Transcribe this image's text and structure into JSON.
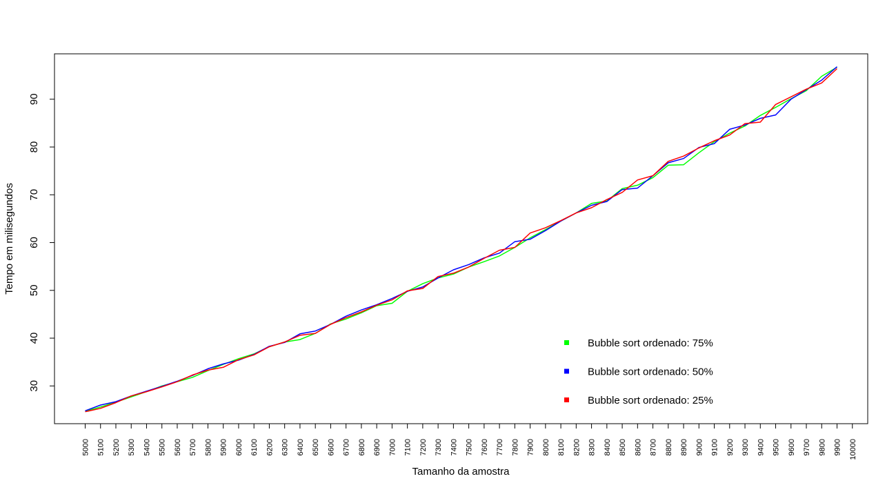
{
  "chart_data": {
    "type": "line",
    "title": "",
    "xlabel": "Tamanho da amostra",
    "ylabel": "Tempo em milisegundos",
    "x": [
      5000,
      5100,
      5200,
      5300,
      5400,
      5500,
      5600,
      5700,
      5800,
      5900,
      6000,
      6100,
      6200,
      6300,
      6400,
      6500,
      6600,
      6700,
      6800,
      6900,
      7000,
      7100,
      7200,
      7300,
      7400,
      7500,
      7600,
      7700,
      7800,
      7900,
      8000,
      8100,
      8200,
      8300,
      8400,
      8500,
      8600,
      8700,
      8800,
      8900,
      9000,
      9100,
      9200,
      9300,
      9400,
      9500,
      9600,
      9700,
      9800,
      9900
    ],
    "xticks": [
      5000,
      5100,
      5200,
      5300,
      5400,
      5500,
      5600,
      5700,
      5800,
      5900,
      6000,
      6100,
      6200,
      6300,
      6400,
      6500,
      6600,
      6700,
      6800,
      6900,
      7000,
      7100,
      7200,
      7300,
      7400,
      7500,
      7600,
      7700,
      7800,
      7900,
      8000,
      8100,
      8200,
      8300,
      8400,
      8500,
      8600,
      8700,
      8800,
      8900,
      9000,
      9100,
      9200,
      9300,
      9400,
      9500,
      9600,
      9700,
      9800,
      9900,
      10000
    ],
    "xlim": [
      4800,
      10100
    ],
    "yticks": [
      30,
      40,
      50,
      60,
      70,
      80,
      90
    ],
    "ylim": [
      22.1,
      99.5
    ],
    "grid": false,
    "legend_position": "bottom-right",
    "series": [
      {
        "name": "Bubble sort ordenado: 75%",
        "color": "#00ff00",
        "values": [
          24.7,
          25.6,
          26.6,
          27.7,
          28.8,
          30.0,
          30.9,
          31.8,
          33.2,
          34.5,
          35.7,
          36.7,
          38.2,
          39.2,
          39.7,
          41.0,
          43.0,
          44.0,
          45.3,
          46.8,
          47.3,
          49.8,
          51.4,
          52.6,
          53.4,
          54.9,
          56.0,
          57.2,
          59.0,
          61.0,
          62.7,
          64.5,
          66.2,
          68.2,
          68.7,
          71.3,
          72.0,
          73.6,
          76.2,
          76.3,
          78.8,
          81.1,
          82.9,
          84.4,
          86.6,
          88.3,
          90.1,
          91.8,
          94.8,
          96.7
        ]
      },
      {
        "name": "Bubble sort ordenado: 50%",
        "color": "#0000ff",
        "values": [
          24.8,
          26.0,
          26.7,
          27.9,
          28.9,
          29.9,
          31.0,
          32.2,
          33.6,
          34.6,
          35.4,
          36.6,
          38.3,
          39.1,
          40.9,
          41.5,
          42.9,
          44.6,
          45.9,
          47.0,
          48.3,
          49.8,
          50.7,
          52.6,
          54.3,
          55.4,
          56.8,
          57.8,
          60.2,
          60.7,
          62.5,
          64.5,
          66.2,
          67.8,
          68.6,
          71.1,
          71.4,
          74.0,
          76.7,
          77.6,
          79.9,
          80.7,
          83.7,
          84.6,
          86.0,
          86.7,
          90.0,
          92.0,
          94.0,
          96.8
        ]
      },
      {
        "name": "Bubble sort ordenado: 25%",
        "color": "#ff0000",
        "values": [
          24.6,
          25.3,
          26.5,
          27.9,
          28.8,
          29.8,
          30.9,
          32.3,
          33.3,
          33.9,
          35.5,
          36.5,
          38.2,
          39.2,
          40.6,
          41.0,
          42.9,
          44.3,
          45.5,
          46.9,
          48.0,
          49.9,
          50.4,
          52.9,
          53.6,
          54.9,
          56.7,
          58.4,
          59.0,
          62.0,
          63.1,
          64.6,
          66.2,
          67.3,
          69.0,
          70.5,
          73.1,
          74.0,
          77.0,
          78.1,
          79.8,
          81.3,
          82.5,
          84.9,
          85.2,
          88.9,
          90.5,
          92.1,
          93.4,
          96.4
        ]
      }
    ]
  }
}
